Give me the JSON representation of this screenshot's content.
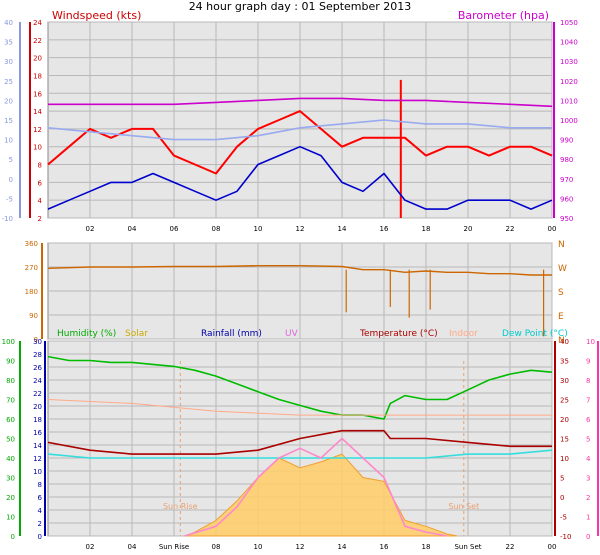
{
  "page": {
    "title": "24 hour graph day : 01 September 2013"
  },
  "chart_data": [
    {
      "type": "line",
      "panel": "wind",
      "title_left": "Windspeed (kts)",
      "title_right": "Barometer (hpa)",
      "x_ticks": [
        "02",
        "04",
        "06",
        "08",
        "10",
        "12",
        "14",
        "16",
        "18",
        "20",
        "22",
        "00"
      ],
      "x_range_hours": [
        0,
        24
      ],
      "y_left_windspeed": {
        "range": [
          2,
          24
        ],
        "ticks": [
          2,
          4,
          6,
          8,
          10,
          12,
          14,
          16,
          18,
          20,
          22,
          24
        ],
        "color": "#cc0000"
      },
      "y_far_left": {
        "range": [
          -10,
          40
        ],
        "ticks": [
          -10,
          -5,
          0,
          5,
          10,
          15,
          20,
          25,
          30,
          35,
          40
        ],
        "color": "#8899dd"
      },
      "y_right_barometer": {
        "range": [
          950,
          1050
        ],
        "ticks": [
          950,
          960,
          970,
          980,
          990,
          1000,
          1010,
          1020,
          1030,
          1040,
          1050
        ],
        "color": "#cc00cc"
      },
      "series": [
        {
          "name": "Windspeed (kts)",
          "axis": "windspeed",
          "color": "#ff0000",
          "x": [
            0,
            1,
            2,
            3,
            4,
            5,
            6,
            7,
            8,
            9,
            10,
            11,
            12,
            13,
            14,
            15,
            16,
            17,
            18,
            19,
            20,
            21,
            22,
            23,
            24
          ],
          "y": [
            8,
            10,
            12,
            11,
            12,
            12,
            9,
            8,
            7,
            10,
            12,
            13,
            14,
            12,
            10,
            11,
            11,
            11,
            9,
            10,
            10,
            9,
            10,
            10,
            9
          ]
        },
        {
          "name": "Windspeed (kts) gust peak",
          "axis": "windspeed",
          "color": "#ff0000",
          "x": [
            16.8
          ],
          "y": [
            17.5
          ]
        },
        {
          "name": "Windspeed (kts) average",
          "axis": "windspeed",
          "color": "#0000cc",
          "x": [
            0,
            1,
            2,
            3,
            4,
            5,
            6,
            7,
            8,
            9,
            10,
            11,
            12,
            13,
            14,
            15,
            16,
            17,
            18,
            19,
            20,
            21,
            22,
            23,
            24
          ],
          "y": [
            3,
            4,
            5,
            6,
            6,
            7,
            6,
            5,
            4,
            5,
            8,
            9,
            10,
            9,
            6,
            5,
            7,
            4,
            3,
            3,
            4,
            4,
            4,
            3,
            4
          ]
        },
        {
          "name": "Barometer (hpa)",
          "axis": "barometer",
          "color": "#cc00cc",
          "x": [
            0,
            2,
            4,
            6,
            8,
            10,
            12,
            14,
            16,
            18,
            20,
            22,
            24
          ],
          "y": [
            1008,
            1008,
            1008,
            1008,
            1009,
            1010,
            1011,
            1011,
            1010,
            1010,
            1009,
            1008,
            1007
          ]
        },
        {
          "name": "Far-left series",
          "axis": "far_left",
          "color": "#99aaee",
          "x": [
            0,
            2,
            4,
            6,
            8,
            10,
            12,
            14,
            16,
            18,
            20,
            22,
            24
          ],
          "y": [
            13,
            12,
            11,
            10,
            10,
            11,
            13,
            14,
            15,
            14,
            14,
            13,
            13
          ]
        }
      ]
    },
    {
      "type": "scatter",
      "panel": "direction",
      "y_range": [
        0,
        360
      ],
      "y_ticks": [
        0,
        90,
        180,
        270,
        360
      ],
      "y_right_labels": [
        "N",
        "E",
        "S",
        "W",
        "N"
      ],
      "x_range_hours": [
        0,
        24
      ],
      "series": [
        {
          "name": "Wind direction",
          "color": "#cc6600",
          "x": [
            0,
            2,
            4,
            6,
            8,
            10,
            12,
            14,
            15,
            16,
            17,
            18,
            19,
            20,
            21,
            22,
            23,
            24
          ],
          "y": [
            265,
            270,
            270,
            272,
            272,
            275,
            275,
            272,
            260,
            260,
            250,
            255,
            250,
            250,
            245,
            245,
            240,
            240
          ]
        },
        {
          "name": "Wind direction spikes",
          "color": "#cc6600",
          "x": [
            14.2,
            16.3,
            17.2,
            18.2,
            23.6
          ],
          "y": [
            100,
            120,
            80,
            110,
            10
          ]
        }
      ]
    },
    {
      "type": "area",
      "panel": "environment",
      "legend": [
        "Humidity (%)",
        "Solar",
        "Rainfall (mm)",
        "UV",
        "Temperature (°C)",
        "Indoor",
        "Dew Point (°C)"
      ],
      "legend_colors": [
        "#00aa00",
        "#ccaa00",
        "#0000aa",
        "#dd66dd",
        "#aa0000",
        "#ffaa88",
        "#00cccc"
      ],
      "x_ticks": [
        "02",
        "04",
        "Sun Rise",
        "08",
        "10",
        "12",
        "14",
        "16",
        "18",
        "Sun Set",
        "22",
        "00"
      ],
      "annotations": [
        {
          "text": "Sun Rise",
          "hour": 6.3
        },
        {
          "text": "Sun Set",
          "hour": 19.8
        }
      ],
      "y_humidity": {
        "range": [
          0,
          100
        ],
        "ticks": [
          0,
          10,
          20,
          30,
          40,
          50,
          60,
          70,
          80,
          90,
          100
        ],
        "color": "#00aa00"
      },
      "y_rainfall": {
        "range": [
          0,
          30
        ],
        "ticks": [
          0,
          2,
          4,
          6,
          8,
          10,
          12,
          14,
          16,
          18,
          20,
          22,
          24,
          26,
          28,
          30
        ],
        "color": "#0000aa"
      },
      "y_temperature": {
        "range": [
          -10,
          40
        ],
        "ticks": [
          -10,
          -5,
          0,
          5,
          10,
          15,
          20,
          25,
          30,
          35,
          40
        ],
        "color": "#aa0000"
      },
      "y_uv": {
        "range": [
          0,
          10
        ],
        "ticks": [
          0,
          1,
          2,
          3,
          4,
          5,
          6,
          7,
          8,
          9,
          10
        ],
        "color": "#ff33aa"
      },
      "series": [
        {
          "name": "Humidity (%)",
          "axis": "humidity",
          "color": "#00bb00",
          "x": [
            0,
            1,
            2,
            3,
            4,
            5,
            6,
            7,
            8,
            9,
            10,
            11,
            12,
            13,
            14,
            15,
            16,
            16.3,
            17,
            18,
            19,
            20,
            21,
            22,
            23,
            24
          ],
          "y": [
            92,
            90,
            90,
            89,
            89,
            88,
            87,
            85,
            82,
            78,
            74,
            70,
            67,
            64,
            62,
            62,
            60,
            68,
            72,
            70,
            70,
            75,
            80,
            83,
            85,
            84
          ]
        },
        {
          "name": "Temperature (°C)",
          "axis": "temperature",
          "color": "#aa0000",
          "x": [
            0,
            2,
            4,
            6,
            8,
            10,
            12,
            14,
            16,
            16.3,
            18,
            20,
            22,
            24
          ],
          "y": [
            14,
            12,
            11,
            11,
            11,
            12,
            15,
            17,
            17,
            15,
            15,
            14,
            13,
            13
          ]
        },
        {
          "name": "Indoor",
          "axis": "temperature",
          "color": "#ffaa88",
          "x": [
            0,
            4,
            8,
            12,
            16,
            20,
            24
          ],
          "y": [
            25,
            24,
            22,
            21,
            21,
            21,
            21
          ]
        },
        {
          "name": "Dew Point (°C)",
          "axis": "temperature",
          "color": "#33dddd",
          "x": [
            0,
            2,
            4,
            6,
            8,
            10,
            12,
            14,
            16,
            18,
            20,
            22,
            24
          ],
          "y": [
            11,
            10,
            10,
            10,
            10,
            10,
            10,
            10,
            10,
            10,
            11,
            11,
            12
          ]
        },
        {
          "name": "Solar",
          "axis": "humidity",
          "color": "#ffcc66",
          "x": [
            6.5,
            7,
            8,
            9,
            10,
            11,
            12,
            13,
            14,
            15,
            16,
            17,
            18,
            19,
            19.5
          ],
          "y": [
            0,
            2,
            8,
            18,
            30,
            40,
            35,
            38,
            42,
            30,
            28,
            8,
            5,
            1,
            0
          ]
        },
        {
          "name": "UV",
          "axis": "uv",
          "color": "#ff88cc",
          "x": [
            6.5,
            8,
            9,
            10,
            11,
            12,
            13,
            14,
            15,
            16,
            17,
            18,
            19
          ],
          "y": [
            0,
            0.5,
            1.5,
            3,
            4,
            4.5,
            4,
            5,
            4,
            3,
            0.5,
            0.2,
            0
          ]
        }
      ]
    }
  ]
}
